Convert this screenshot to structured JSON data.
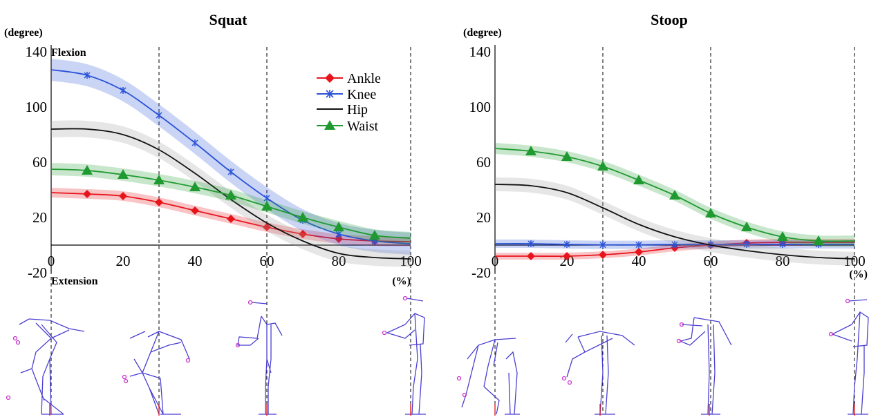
{
  "chart_data": [
    {
      "type": "line",
      "title": "Squat",
      "ylabel": "(degree)",
      "xlabel": "(%)",
      "xlim": [
        0,
        100
      ],
      "ylim": [
        -20,
        140
      ],
      "xticks": [
        "0",
        "20",
        "40",
        "60",
        "80",
        "100"
      ],
      "yticks": [
        "140",
        "100",
        "60",
        "20",
        "-20"
      ],
      "annotations": [
        "Flexion",
        "Extension"
      ],
      "phase_lines_x": [
        0,
        30,
        60,
        100
      ],
      "legend": "top-right",
      "series": [
        {
          "name": "Ankle",
          "color": "#e8141c",
          "marker": "diamond",
          "x": [
            0,
            10,
            20,
            30,
            40,
            50,
            60,
            70,
            80,
            90,
            100
          ],
          "y": [
            38,
            37,
            35.5,
            31,
            25,
            19,
            13,
            8,
            4.5,
            3,
            2.5
          ],
          "band": 3.5
        },
        {
          "name": "Knee",
          "color": "#2a52d8",
          "marker": "asterisk",
          "x": [
            0,
            10,
            20,
            30,
            40,
            50,
            60,
            70,
            80,
            90,
            100
          ],
          "y": [
            127,
            123,
            112,
            94,
            74,
            53,
            34,
            18,
            8,
            3,
            1
          ],
          "band": 8
        },
        {
          "name": "Hip",
          "color": "#111111",
          "marker": "none",
          "x": [
            0,
            10,
            20,
            30,
            40,
            50,
            60,
            70,
            80,
            90,
            100
          ],
          "y": [
            84,
            84,
            80,
            69,
            52,
            33,
            16,
            3,
            -6,
            -9,
            -10
          ],
          "band": 6
        },
        {
          "name": "Waist",
          "color": "#1f9a30",
          "marker": "triangle",
          "x": [
            0,
            10,
            20,
            30,
            40,
            50,
            60,
            70,
            80,
            90,
            100
          ],
          "y": [
            55,
            54,
            51,
            47,
            42,
            36,
            28,
            20,
            13,
            7,
            5
          ],
          "band": 4.5
        }
      ]
    },
    {
      "type": "line",
      "title": "Stoop",
      "ylabel": "(degree)",
      "xlabel": "(%)",
      "xlim": [
        0,
        100
      ],
      "ylim": [
        -20,
        140
      ],
      "xticks": [
        "0",
        "20",
        "40",
        "60",
        "80",
        "100"
      ],
      "yticks": [
        "140",
        "100",
        "60",
        "20",
        "-20"
      ],
      "phase_lines_x": [
        0,
        30,
        60,
        100
      ],
      "series": [
        {
          "name": "Ankle",
          "color": "#e8141c",
          "marker": "diamond",
          "x": [
            0,
            10,
            20,
            30,
            40,
            50,
            60,
            70,
            80,
            90,
            100
          ],
          "y": [
            -8,
            -8,
            -8,
            -7,
            -5,
            -2,
            0,
            1.5,
            2,
            2,
            2
          ],
          "band": 2.5
        },
        {
          "name": "Knee",
          "color": "#2a52d8",
          "marker": "asterisk",
          "x": [
            0,
            10,
            20,
            30,
            40,
            50,
            60,
            70,
            80,
            90,
            100
          ],
          "y": [
            1,
            1,
            0.5,
            0.2,
            0.2,
            0.5,
            0.5,
            0.5,
            0.5,
            0.5,
            0.5
          ],
          "band": 3
        },
        {
          "name": "Hip",
          "color": "#111111",
          "marker": "none",
          "x": [
            0,
            10,
            20,
            30,
            40,
            50,
            60,
            70,
            80,
            90,
            100
          ],
          "y": [
            44,
            43,
            38,
            27,
            15,
            6,
            0,
            -4,
            -7,
            -9,
            -10
          ],
          "band": 5
        },
        {
          "name": "Waist",
          "color": "#1f9a30",
          "marker": "triangle",
          "x": [
            0,
            10,
            20,
            30,
            40,
            50,
            60,
            70,
            80,
            90,
            100
          ],
          "y": [
            70,
            68,
            64,
            57,
            47,
            36,
            23,
            13,
            6,
            3,
            3
          ],
          "band": 4
        }
      ]
    }
  ]
}
